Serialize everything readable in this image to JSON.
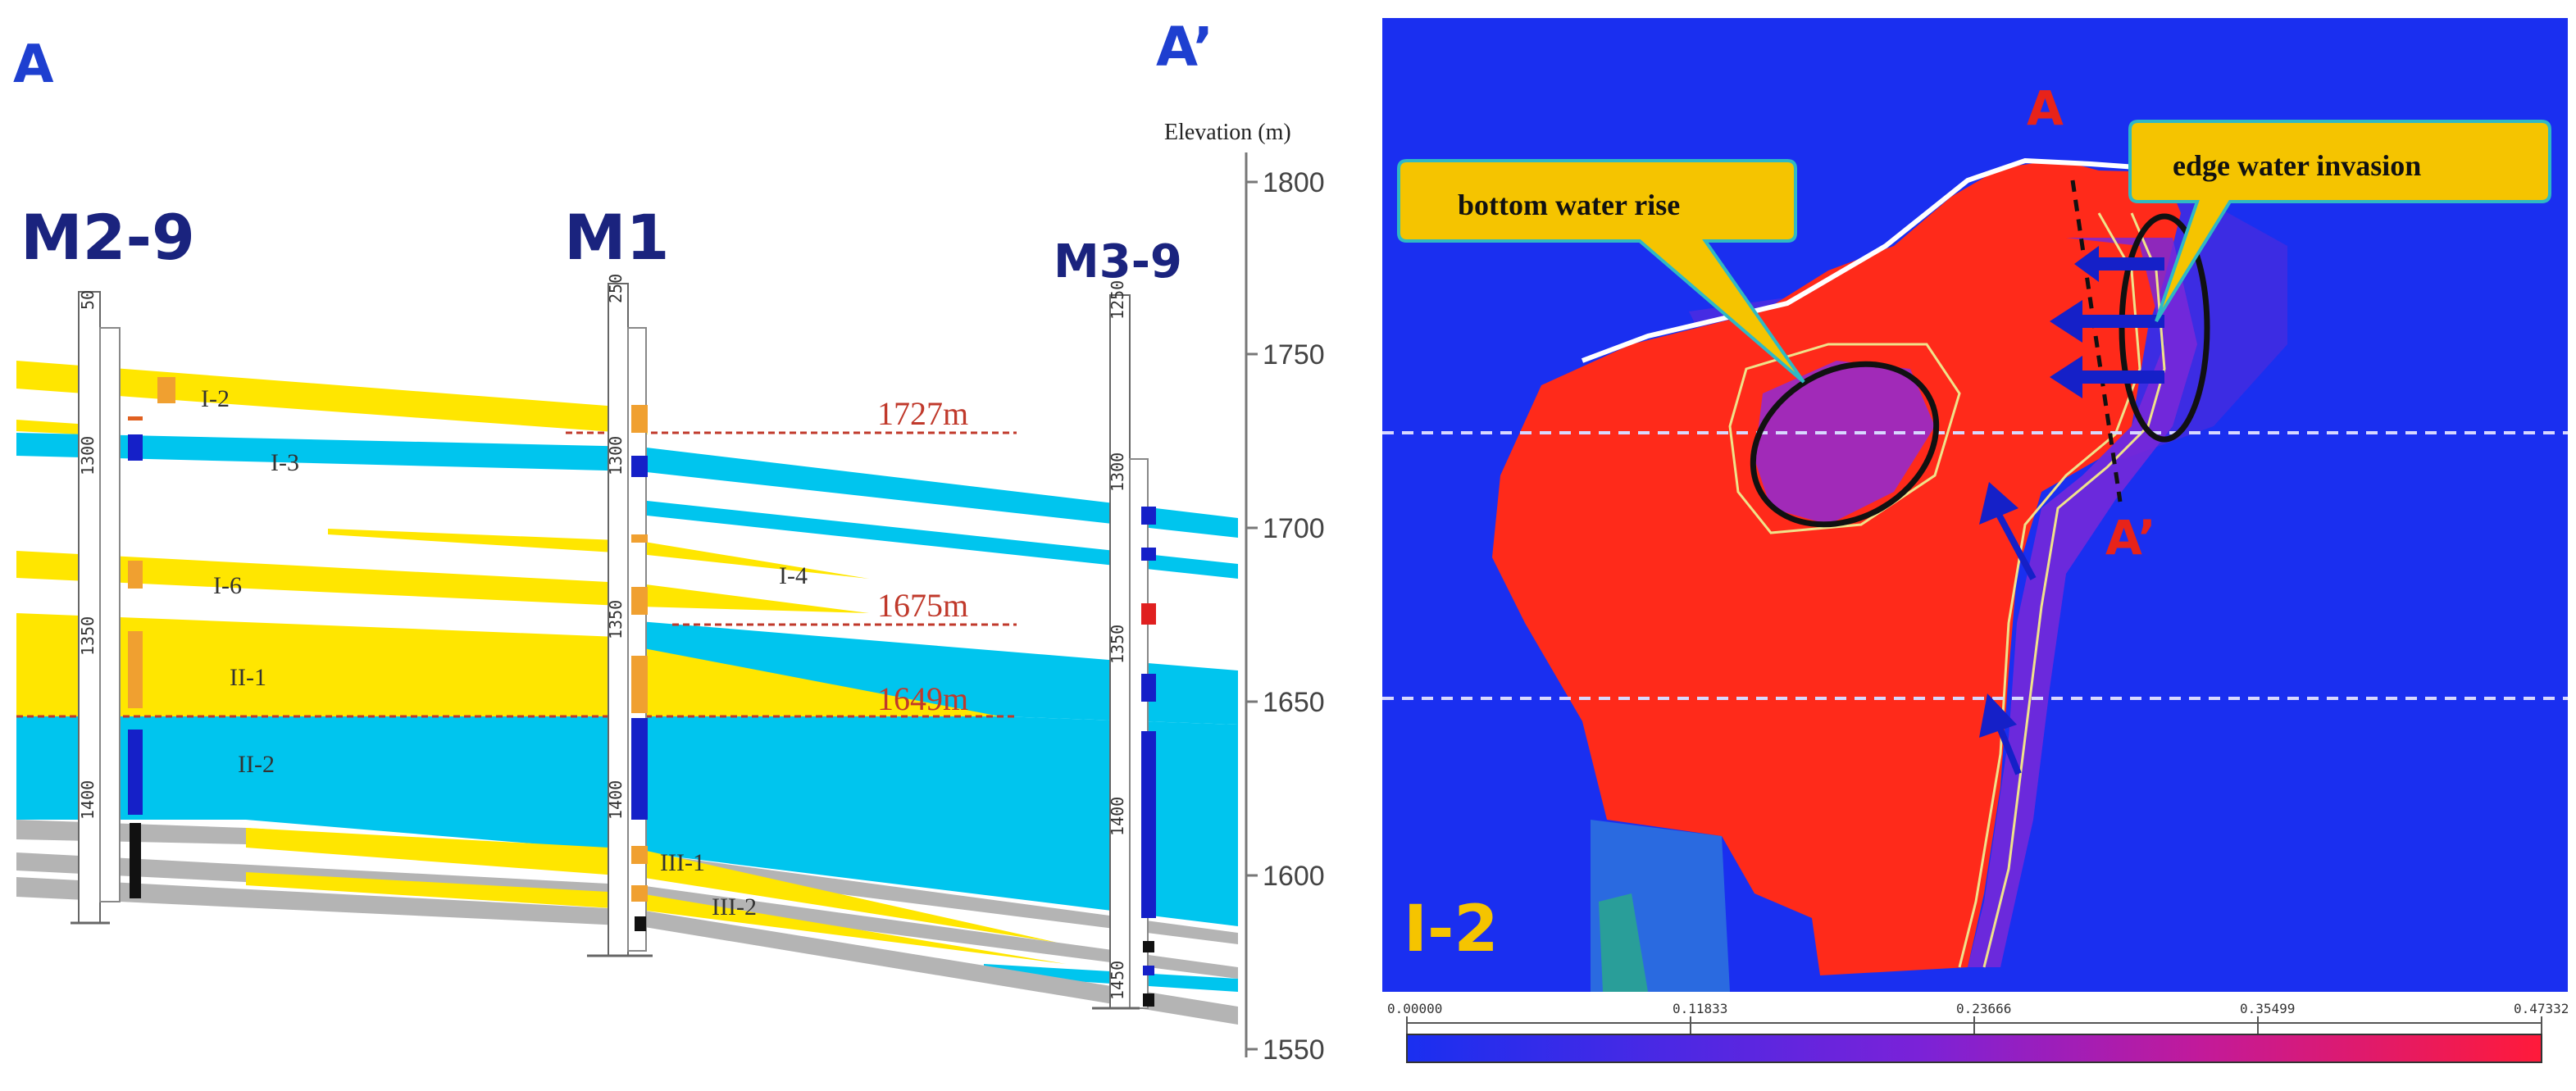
{
  "cross_section": {
    "section_start": "A",
    "section_end": "A’",
    "elevation_label": "Elevation (m)",
    "elevation_ticks": [
      "1800",
      "1750",
      "1700",
      "1650",
      "1600",
      "1550"
    ],
    "wells": [
      {
        "name": "M2-9",
        "depth_ticks": [
          "50",
          "1300",
          "1350",
          "1400"
        ]
      },
      {
        "name": "M1",
        "depth_ticks": [
          "250",
          "1300",
          "1350",
          "1400"
        ]
      },
      {
        "name": "M3-9",
        "depth_ticks": [
          "1250",
          "1300",
          "1350",
          "1400",
          "1450"
        ]
      }
    ],
    "layer_labels": [
      "I-2",
      "I-3",
      "I-4",
      "I-6",
      "II-1",
      "II-2",
      "III-1",
      "III-2"
    ],
    "contact_labels": [
      "1727m",
      "1675m",
      "1649m"
    ],
    "colors": {
      "oil": "#ffe600",
      "water": "#00c5ee",
      "dry": "#b4b4b4",
      "contact": "#c0392b",
      "well_label": "#1a237e"
    }
  },
  "saturation_map": {
    "layer_name": "I-2",
    "callouts": [
      "bottom water rise",
      "edge water invasion"
    ],
    "section_labels": {
      "start": "A",
      "end": "A’"
    },
    "colorbar_ticks": [
      "0.00000",
      "0.11833",
      "0.23666",
      "0.35499",
      "0.47332"
    ],
    "colors": {
      "background": "#1a2ff0",
      "high": "#ff2a1a",
      "callout_fill": "#f5c400",
      "callout_border": "#2fb9c4",
      "marker": "#e8231a",
      "layer_label": "#f5c400"
    }
  }
}
